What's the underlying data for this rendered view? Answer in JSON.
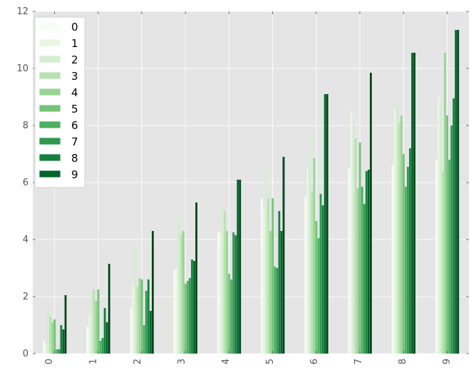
{
  "chart_data": {
    "type": "bar",
    "categories": [
      "0",
      "1",
      "2",
      "3",
      "4",
      "5",
      "6",
      "7",
      "8",
      "9"
    ],
    "series": [
      {
        "name": "0",
        "color": "#f7fcf5",
        "values": [
          0.45,
          0.95,
          1.6,
          2.95,
          4.25,
          5.45,
          5.5,
          6.5,
          6.6,
          6.8
        ]
      },
      {
        "name": "1",
        "color": "#e8f6e3",
        "values": [
          0.35,
          1.35,
          2.4,
          3.0,
          4.3,
          5.0,
          6.5,
          8.5,
          8.6,
          9.0
        ]
      },
      {
        "name": "2",
        "color": "#d3eecd",
        "values": [
          1.5,
          2.2,
          3.7,
          4.75,
          5.05,
          6.5,
          7.6,
          8.0,
          8.7,
          8.8
        ]
      },
      {
        "name": "3",
        "color": "#b7e2b1",
        "values": [
          1.3,
          2.25,
          2.35,
          4.2,
          5.0,
          5.45,
          5.7,
          7.55,
          8.1,
          6.4
        ]
      },
      {
        "name": "4",
        "color": "#97d494",
        "values": [
          1.1,
          1.85,
          2.65,
          4.3,
          4.3,
          4.3,
          6.85,
          5.8,
          8.35,
          10.55
        ]
      },
      {
        "name": "5",
        "color": "#73c378",
        "values": [
          1.2,
          2.25,
          2.6,
          2.45,
          2.8,
          5.45,
          4.65,
          7.4,
          7.0,
          8.35
        ]
      },
      {
        "name": "6",
        "color": "#4daf62",
        "values": [
          0.15,
          0.45,
          1.0,
          2.55,
          2.6,
          3.05,
          4.05,
          5.85,
          5.85,
          6.8
        ]
      },
      {
        "name": "7",
        "color": "#2f984f",
        "values": [
          0.15,
          0.55,
          2.2,
          2.65,
          4.25,
          3.0,
          5.6,
          5.25,
          6.55,
          8.0
        ]
      },
      {
        "name": "8",
        "color": "#157f3b",
        "values": [
          1.0,
          1.6,
          2.6,
          3.3,
          4.15,
          5.0,
          5.2,
          6.4,
          7.2,
          8.95
        ]
      },
      {
        "name": "9",
        "color": "#03642b",
        "values": [
          0.85,
          1.1,
          1.5,
          3.25,
          6.1,
          4.3,
          9.1,
          6.45,
          10.55,
          11.35
        ]
      },
      {
        "name": "",
        "color": "#00441b",
        "values": [
          2.05,
          3.15,
          4.3,
          5.3,
          6.1,
          6.9,
          9.1,
          9.85,
          10.55,
          11.35
        ]
      }
    ],
    "legend": {
      "entries": [
        "0",
        "1",
        "2",
        "3",
        "4",
        "5",
        "6",
        "7",
        "8",
        "9"
      ],
      "position": "upper-left"
    },
    "yticks": [
      "0",
      "2",
      "4",
      "6",
      "8",
      "10",
      "12"
    ],
    "ylim": [
      0,
      12
    ],
    "grid": true,
    "background": "#e5e5e5",
    "title": "",
    "xlabel": "",
    "ylabel": ""
  }
}
